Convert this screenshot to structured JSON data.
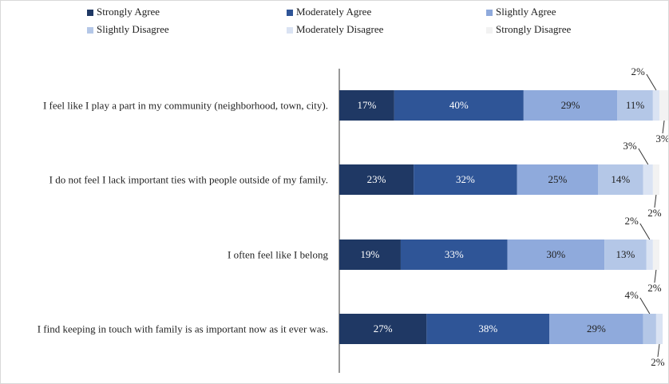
{
  "chart_data": {
    "type": "stacked-bar-horizontal",
    "categories": [
      "I feel like I play a part in my community (neighborhood, town, city).",
      "I do not feel I lack important ties with people outside of my family.",
      "I often feel like I belong",
      "I find keeping in touch with family is as important now as it ever was."
    ],
    "xlim": [
      0,
      100
    ],
    "series": [
      {
        "name": "Strongly Agree",
        "color": "#1f3864",
        "values": [
          17,
          23,
          19,
          27
        ],
        "value_labels": [
          "17%",
          "23%",
          "19%",
          "27%"
        ]
      },
      {
        "name": "Moderately Agree",
        "color": "#2f5597",
        "values": [
          40,
          32,
          33,
          38
        ],
        "value_labels": [
          "40%",
          "32%",
          "33%",
          "38%"
        ]
      },
      {
        "name": "Slightly Agree",
        "color": "#8faadc",
        "values": [
          29,
          25,
          30,
          29
        ],
        "value_labels": [
          "29%",
          "25%",
          "30%",
          "29%"
        ]
      },
      {
        "name": "Slightly Disagree",
        "color": "#b4c7e7",
        "values": [
          11,
          14,
          13,
          4
        ],
        "value_labels": [
          "11%",
          "14%",
          "13%",
          "4%"
        ]
      },
      {
        "name": "Moderately Disagree",
        "color": "#dae3f3",
        "values": [
          2,
          3,
          2,
          2
        ],
        "value_labels": [
          "2%",
          "3%",
          "2%",
          "2%"
        ]
      },
      {
        "name": "Strongly Disagree",
        "color": "#f2f2f2",
        "values": [
          3,
          2,
          2,
          null
        ],
        "value_labels": [
          "3%",
          "2%",
          "2%",
          null
        ]
      }
    ]
  }
}
